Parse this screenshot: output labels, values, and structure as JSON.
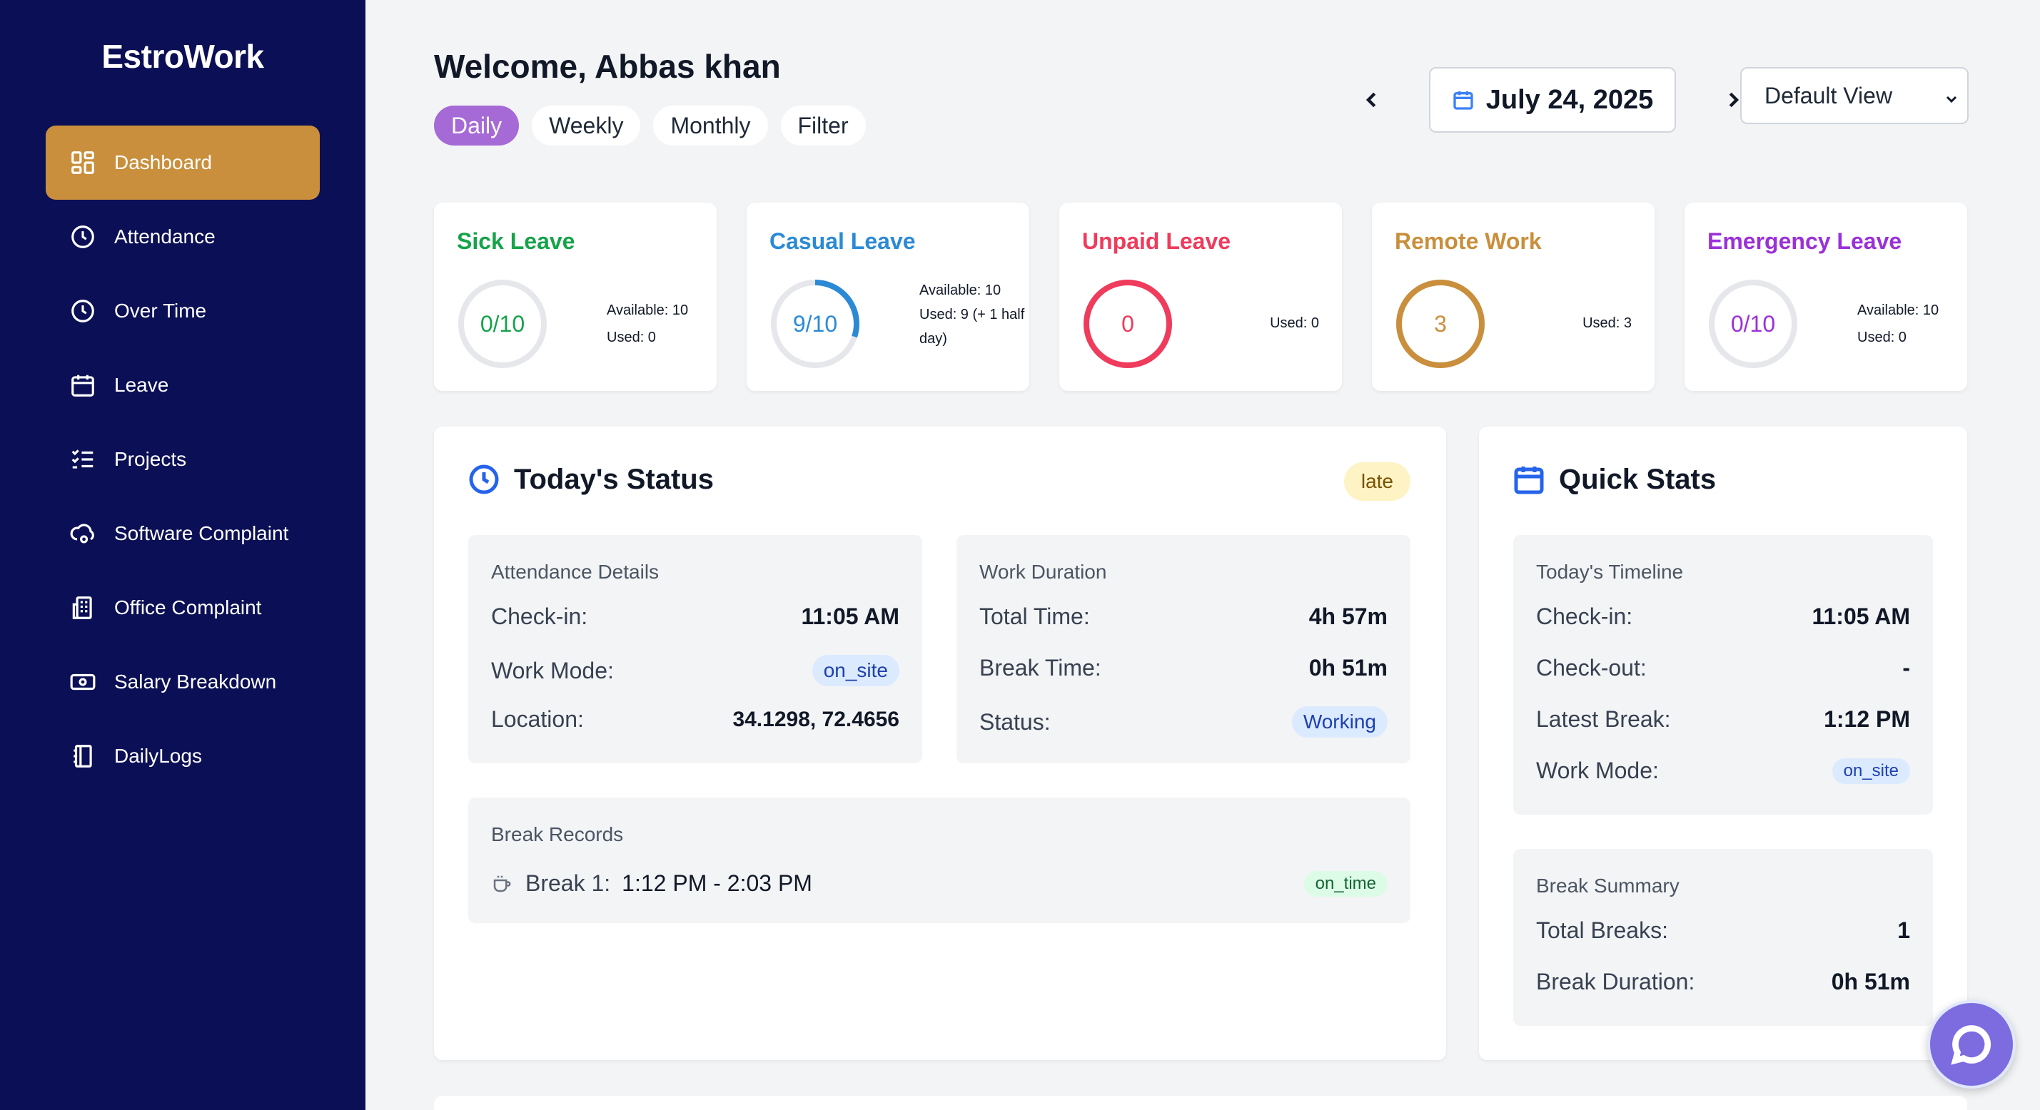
{
  "sidebar": {
    "brand": "EstroWork",
    "items": [
      {
        "label": "Dashboard",
        "icon": "grid-icon"
      },
      {
        "label": "Attendance",
        "icon": "clock-icon"
      },
      {
        "label": "Over Time",
        "icon": "clock-icon"
      },
      {
        "label": "Leave",
        "icon": "calendar-icon"
      },
      {
        "label": "Projects",
        "icon": "checklist-icon"
      },
      {
        "label": "Software Complaint",
        "icon": "cloud-gear-icon"
      },
      {
        "label": "Office Complaint",
        "icon": "building-icon"
      },
      {
        "label": "Salary Breakdown",
        "icon": "cash-icon"
      },
      {
        "label": "DailyLogs",
        "icon": "notebook-icon"
      }
    ],
    "active_index": 0
  },
  "header": {
    "welcome": "Welcome, Abbas khan",
    "tabs": [
      "Daily",
      "Weekly",
      "Monthly",
      "Filter"
    ],
    "active_tab": "Daily",
    "date": "July 24, 2025",
    "view_select": "Default View"
  },
  "leave_cards": [
    {
      "title": "Sick Leave",
      "color": "#16a34a",
      "value_text": "0/10",
      "progress": 0,
      "available": "Available: 10",
      "used": "Used: 0"
    },
    {
      "title": "Casual Leave",
      "color": "#2b8ad6",
      "value_text": "9/10",
      "progress": 0.3,
      "available": "Available: 10",
      "used": "Used: 9 (+ 1 half day)"
    },
    {
      "title": "Unpaid Leave",
      "color": "#ef3b5c",
      "value_text": "0",
      "progress": 1,
      "used": "Used: 0"
    },
    {
      "title": "Remote Work",
      "color": "#c98f3c",
      "value_text": "3",
      "progress": 1,
      "used": "Used: 3"
    },
    {
      "title": "Emergency Leave",
      "color": "#9b30d9",
      "value_text": "0/10",
      "progress": 0,
      "available": "Available: 10",
      "used": "Used: 0"
    }
  ],
  "todays_status": {
    "title": "Today's Status",
    "badge": "late",
    "attendance": {
      "title": "Attendance Details",
      "checkin_label": "Check-in:",
      "checkin": "11:05 AM",
      "mode_label": "Work Mode:",
      "mode": "on_site",
      "location_label": "Location:",
      "location": "34.1298, 72.4656"
    },
    "duration": {
      "title": "Work Duration",
      "total_label": "Total Time:",
      "total": "4h 57m",
      "break_label": "Break Time:",
      "break": "0h 51m",
      "status_label": "Status:",
      "status": "Working"
    },
    "breaks": {
      "title": "Break Records",
      "items": [
        {
          "label": "Break 1:",
          "time": "1:12 PM - 2:03 PM",
          "status": "on_time"
        }
      ]
    }
  },
  "quick_stats": {
    "title": "Quick Stats",
    "timeline": {
      "title": "Today's Timeline",
      "checkin_label": "Check-in:",
      "checkin": "11:05 AM",
      "checkout_label": "Check-out:",
      "checkout": "-",
      "latest_break_label": "Latest Break:",
      "latest_break": "1:12 PM",
      "mode_label": "Work Mode:",
      "mode": "on_site"
    },
    "summary": {
      "title": "Break Summary",
      "total_label": "Total Breaks:",
      "total": "1",
      "duration_label": "Break Duration:",
      "duration": "0h 51m"
    }
  }
}
